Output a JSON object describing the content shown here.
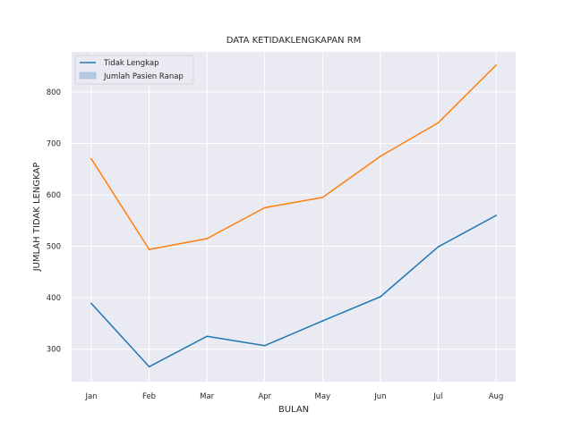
{
  "chart_data": {
    "type": "line",
    "title": "DATA KETIDAKLENGKAPAN RM",
    "xlabel": "BULAN",
    "ylabel": "JUMLAH TIDAK LENGKAP",
    "categories": [
      "Jan",
      "Feb",
      "Mar",
      "Apr",
      "May",
      "Jun",
      "Jul",
      "Aug"
    ],
    "series": [
      {
        "name": "Tidak Lengkap",
        "color": "#1f77b4",
        "values": [
          389,
          266,
          325,
          307,
          355,
          402,
          499,
          560
        ]
      },
      {
        "name": "Jumlah Pasien Ranap",
        "color": "#ff7f0e",
        "values": [
          670,
          494,
          515,
          575,
          595,
          675,
          740,
          852
        ]
      }
    ],
    "yticks": [
      300,
      400,
      500,
      600,
      700,
      800
    ],
    "ylim": [
      237,
      878
    ],
    "grid": true,
    "legend_position": "top-left",
    "legend_entries": [
      {
        "label": "Tidak Lengkap",
        "swatch": "line",
        "color": "#1f77b4"
      },
      {
        "label": "Jumlah Pasien Ranap",
        "swatch": "patch",
        "color": "#b4c8e4"
      }
    ],
    "background": "#eaeaf2"
  }
}
